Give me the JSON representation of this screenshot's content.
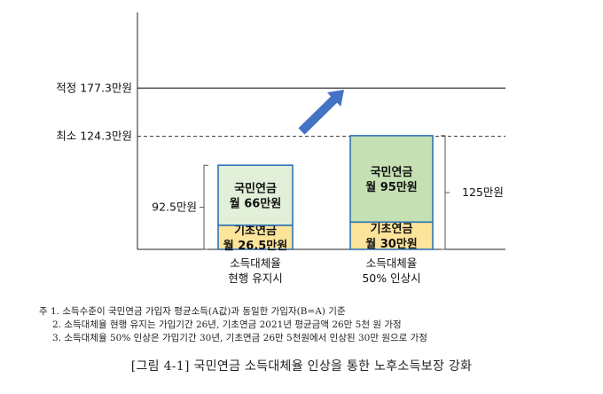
{
  "chart_data": {
    "type": "bar",
    "stacked": true,
    "categories": [
      [
        "소득대체율",
        "현행 유지시"
      ],
      [
        "소득대체율",
        "50% 인상시"
      ]
    ],
    "series": [
      {
        "values": [
          26.5,
          30
        ],
        "labels": [
          [
            "기초연금",
            "월 26.5만원"
          ],
          [
            "기초연금",
            "월 30만원"
          ]
        ],
        "color": "#fde49b"
      },
      {
        "values": [
          66,
          95
        ],
        "labels": [
          [
            "국민연금",
            "월 66만원"
          ],
          [
            "국민연금",
            "월 95만원"
          ]
        ],
        "colors": [
          "#e2efd9",
          "#c5e0b3"
        ]
      }
    ],
    "totals": [
      "92.5만원",
      "125만원"
    ],
    "reference_lines": [
      {
        "label": "적정 177.3만원",
        "value": 177.3,
        "style": "solid"
      },
      {
        "label": "최소 124.3만원",
        "value": 124.3,
        "style": "dashed"
      }
    ],
    "border_color": "#2e75b6",
    "arrow_color": "#4472c4",
    "ylim": [
      0,
      190
    ]
  },
  "notes": [
    "주 1. 소득수준이 국민연금 가입자 평균소득(A값)과 동일한 가입자(B=A) 기준",
    "2. 소득대체율 현행 유지는 가입기간 26년, 기초연금 2021년 평균금액 26만 5천 원 가정",
    "3. 소득대체율 50% 인상은 가입기간 30년, 기초연금 26만 5천원에서 인상된 30만 원으로 가정"
  ],
  "caption": "[그림 4-1] 국민연금 소득대체율 인상을 통한 노후소득보장 강화"
}
